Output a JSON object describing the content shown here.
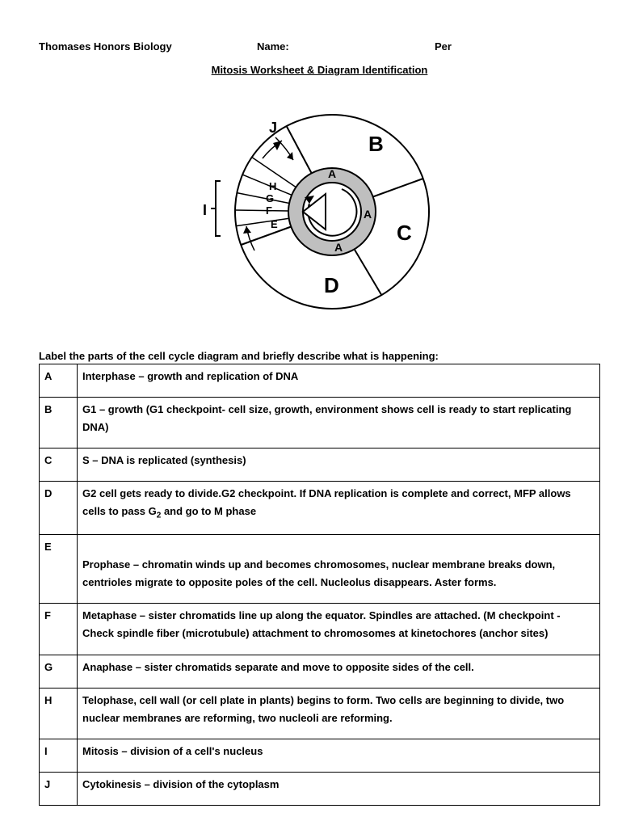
{
  "header": {
    "course": "Thomases Honors Biology",
    "name_label": "Name:",
    "per_label": "Per"
  },
  "title": "Mitosis Worksheet & Diagram Identification",
  "diagram": {
    "labels": {
      "A": "A",
      "B": "B",
      "C": "C",
      "D": "D",
      "E": "E",
      "F": "F",
      "G": "G",
      "H": "H",
      "I": "I",
      "J": "J"
    },
    "colors": {
      "background": "#ffffff",
      "stroke": "#000000",
      "ring_fill": "#bfbfbf"
    },
    "outer_radius": 120,
    "ring_outer": 54,
    "ring_inner": 36,
    "stroke_width": 2
  },
  "instruction": "Label the parts of the cell cycle diagram and briefly describe what is happening:",
  "rows": [
    {
      "letter": "A",
      "text": "Interphase – growth and replication of DNA"
    },
    {
      "letter": "B",
      "text": "G1 – growth (G1 checkpoint- cell size, growth, environment shows cell is ready to start replicating DNA)"
    },
    {
      "letter": "C",
      "text": "S – DNA is replicated (synthesis)"
    },
    {
      "letter": "D",
      "text": "G2 cell gets ready to divide.G2 checkpoint. If DNA replication is complete and correct, MFP  allows cells to pass G₂ and go to M phase"
    },
    {
      "letter": "E",
      "text": "Prophase – chromatin winds up and becomes chromosomes, nuclear membrane breaks down, centrioles migrate to opposite poles of the cell. Nucleolus disappears. Aster forms."
    },
    {
      "letter": "F",
      "text": "Metaphase – sister chromatids line up along the equator. Spindles are attached. (M checkpoint - Check spindle fiber (microtubule) attachment to chromosomes at kinetochores (anchor sites)"
    },
    {
      "letter": "G",
      "text": "Anaphase – sister chromatids separate and move to opposite sides of the cell."
    },
    {
      "letter": "H",
      "text": "Telophase, cell wall (or cell plate in plants) begins to form. Two cells are beginning to divide, two nuclear membranes are reforming, two nucleoli are reforming."
    },
    {
      "letter": "I",
      "text": "Mitosis – division of a cell's nucleus"
    },
    {
      "letter": "J",
      "text": "Cytokinesis – division of the cytoplasm"
    }
  ]
}
